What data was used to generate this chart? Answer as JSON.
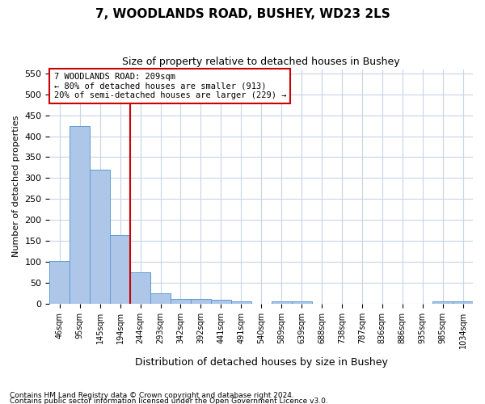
{
  "title": "7, WOODLANDS ROAD, BUSHEY, WD23 2LS",
  "subtitle": "Size of property relative to detached houses in Bushey",
  "xlabel": "Distribution of detached houses by size in Bushey",
  "ylabel": "Number of detached properties",
  "footnote1": "Contains HM Land Registry data © Crown copyright and database right 2024.",
  "footnote2": "Contains public sector information licensed under the Open Government Licence v3.0.",
  "annotation_title": "7 WOODLANDS ROAD: 209sqm",
  "annotation_line1": "← 80% of detached houses are smaller (913)",
  "annotation_line2": "20% of semi-detached houses are larger (229) →",
  "bin_labels": [
    "46sqm",
    "95sqm",
    "145sqm",
    "194sqm",
    "244sqm",
    "293sqm",
    "342sqm",
    "392sqm",
    "441sqm",
    "491sqm",
    "540sqm",
    "589sqm",
    "639sqm",
    "688sqm",
    "738sqm",
    "787sqm",
    "836sqm",
    "886sqm",
    "935sqm",
    "985sqm",
    "1034sqm"
  ],
  "bar_values": [
    103,
    425,
    320,
    163,
    75,
    25,
    11,
    11,
    10,
    6,
    0,
    5,
    5,
    0,
    0,
    0,
    0,
    0,
    0,
    5,
    5
  ],
  "bar_color": "#aec6e8",
  "bar_edge_color": "#5b9bd5",
  "grid_color": "#c8d4e8",
  "vline_color": "#cc0000",
  "annotation_box_color": "#cc0000",
  "ylim": [
    0,
    560
  ],
  "yticks": [
    0,
    50,
    100,
    150,
    200,
    250,
    300,
    350,
    400,
    450,
    500,
    550
  ],
  "background_color": "#ffffff",
  "vline_pos": 3.5
}
